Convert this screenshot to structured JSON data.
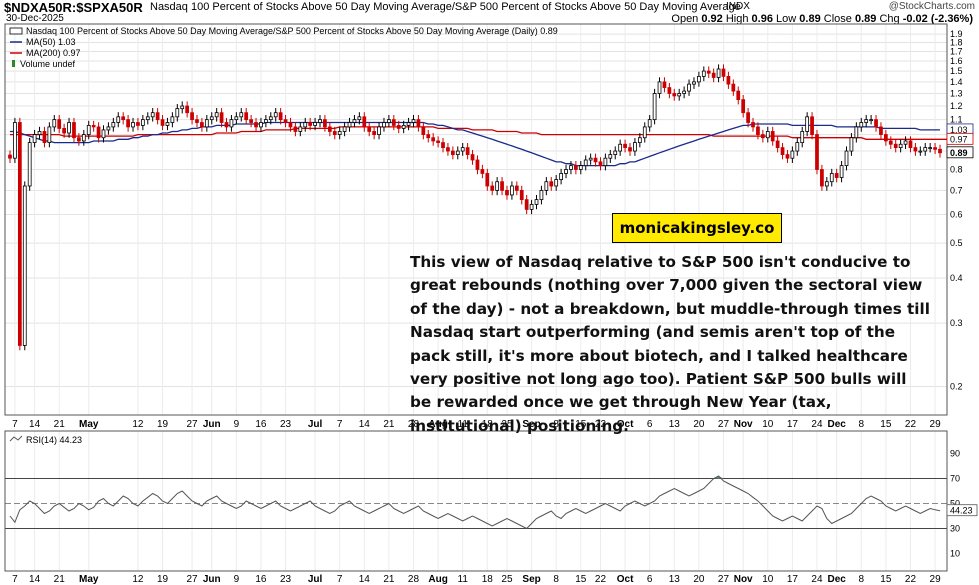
{
  "header": {
    "symbol": "$NDXA50R:$SPXA50R",
    "description": "Nasdaq 100 Percent of Stocks Above 50 Day Moving Average/S&P 500 Percent of Stocks Above 50 Day Moving Average",
    "exchange": "INDX",
    "watermark": "@StockCharts.com",
    "date": "30-Dec-2025",
    "open_label": "Open",
    "open": "0.92",
    "high_label": "High",
    "high": "0.96",
    "low_label": "Low",
    "low": "0.89",
    "close_label": "Close",
    "close": "0.89",
    "chg_label": "Chg",
    "chg": "-0.02 (-2.36%)"
  },
  "legend": {
    "main": "Nasdaq 100 Percent of Stocks Above 50 Day Moving Average/S&P 500 Percent of Stocks Above 50 Day Moving Average (Daily) 0.89",
    "ma50": "MA(50) 1.03",
    "ma200": "MA(200) 0.97",
    "volume": "Volume undef",
    "rsi": "RSI(14) 44.23"
  },
  "colors": {
    "up": "#000000",
    "down": "#cc0000",
    "ma50": "#1a2a8c",
    "ma200": "#cc0000",
    "rsi": "#555555",
    "brand_bg": "#ffea00"
  },
  "annotation": {
    "brand": "monicakingsley.co",
    "text": "This view of Nasdaq relative to S&P 500 isn't conducive to great rebounds (nothing over 7,000 given the sectoral view of the day) - not a breakdown, but muddle-through times till Nasdaq start outperforming (and semis aren't top of the pack still, it's more about biotech, and I talked healthcare very positive not long ago too). Patient S&P 500 bulls will be rewarded once we get through New Year (tax, institutional) positioning."
  },
  "chart_data": [
    {
      "type": "candlestick",
      "scale": "log",
      "ylim": [
        0.17,
        1.95
      ],
      "y_ticks": [
        "1.9",
        "1.8",
        "1.7",
        "1.6",
        "1.5",
        "1.4",
        "1.3",
        "1.2",
        "1.1",
        "1.0",
        "0.9",
        "0.8",
        "0.7",
        "0.6",
        "0.5",
        "0.4",
        "0.3",
        "0.2"
      ],
      "y_tick_values": [
        1.9,
        1.8,
        1.7,
        1.6,
        1.5,
        1.4,
        1.3,
        1.2,
        1.1,
        1.0,
        0.9,
        0.8,
        0.7,
        0.6,
        0.5,
        0.4,
        0.3,
        0.2
      ],
      "price_labels": [
        {
          "label": "1.03",
          "value": 1.03,
          "series": "ma50"
        },
        {
          "label": "0.97",
          "value": 0.97,
          "series": "ma200"
        },
        {
          "label": "0.89",
          "value": 0.89,
          "series": "close"
        }
      ],
      "x_ticks": [
        "7",
        "14",
        "21",
        "May",
        "12",
        "19",
        "27",
        "Jun",
        "9",
        "16",
        "23",
        "Jul",
        "7",
        "14",
        "21",
        "28",
        "Aug",
        "11",
        "18",
        "25",
        "Sep",
        "8",
        "15",
        "22",
        "Oct",
        "6",
        "13",
        "20",
        "27",
        "Nov",
        "10",
        "17",
        "24",
        "Dec",
        "8",
        "15",
        "22",
        "29"
      ],
      "x_tick_index": [
        1,
        5,
        10,
        16,
        26,
        31,
        37,
        41,
        46,
        51,
        56,
        62,
        67,
        72,
        77,
        82,
        87,
        92,
        97,
        101,
        106,
        111,
        116,
        120,
        125,
        130,
        135,
        140,
        145,
        149,
        154,
        159,
        164,
        168,
        173,
        178,
        183,
        188
      ],
      "month_ticks": [
        "May",
        "Jun",
        "Jul",
        "Aug",
        "Sep",
        "Oct",
        "Nov",
        "Dec"
      ],
      "close": [
        0.86,
        1.08,
        0.26,
        0.72,
        0.95,
        1.0,
        1.02,
        0.95,
        1.05,
        1.1,
        1.04,
        1.01,
        1.08,
        0.98,
        0.96,
        1.0,
        1.06,
        1.05,
        0.98,
        1.03,
        1.05,
        1.08,
        1.12,
        1.1,
        1.05,
        1.08,
        1.06,
        1.1,
        1.12,
        1.15,
        1.1,
        1.06,
        1.08,
        1.12,
        1.18,
        1.2,
        1.15,
        1.1,
        1.08,
        1.05,
        1.1,
        1.12,
        1.15,
        1.08,
        1.05,
        1.1,
        1.12,
        1.15,
        1.1,
        1.08,
        1.05,
        1.08,
        1.1,
        1.12,
        1.15,
        1.1,
        1.08,
        1.05,
        1.02,
        1.05,
        1.08,
        1.06,
        1.08,
        1.1,
        1.05,
        1.02,
        1.0,
        1.02,
        1.05,
        1.08,
        1.1,
        1.12,
        1.05,
        1.02,
        1.0,
        1.05,
        1.08,
        1.1,
        1.06,
        1.04,
        1.06,
        1.08,
        1.1,
        1.05,
        1.0,
        0.98,
        0.96,
        0.95,
        0.92,
        0.9,
        0.88,
        0.9,
        0.92,
        0.88,
        0.85,
        0.8,
        0.78,
        0.72,
        0.7,
        0.74,
        0.7,
        0.68,
        0.72,
        0.7,
        0.66,
        0.62,
        0.64,
        0.66,
        0.7,
        0.74,
        0.72,
        0.75,
        0.78,
        0.8,
        0.82,
        0.8,
        0.82,
        0.85,
        0.86,
        0.84,
        0.82,
        0.86,
        0.88,
        0.9,
        0.94,
        0.92,
        0.9,
        0.95,
        0.98,
        1.05,
        1.1,
        1.3,
        1.4,
        1.35,
        1.3,
        1.28,
        1.3,
        1.32,
        1.38,
        1.4,
        1.45,
        1.5,
        1.48,
        1.44,
        1.52,
        1.45,
        1.38,
        1.32,
        1.25,
        1.15,
        1.08,
        1.05,
        1.0,
        0.98,
        1.02,
        0.96,
        0.92,
        0.88,
        0.86,
        0.9,
        0.95,
        1.02,
        1.12,
        1.0,
        0.8,
        0.72,
        0.74,
        0.78,
        0.76,
        0.82,
        0.9,
        0.98,
        1.05,
        1.08,
        1.1,
        1.1,
        1.05,
        1.0,
        0.96,
        0.94,
        0.92,
        0.94,
        0.96,
        0.92,
        0.9,
        0.9,
        0.92,
        0.92,
        0.91,
        0.89
      ],
      "ma50": [
        1.02,
        1.02,
        1.01,
        1.0,
        0.99,
        0.98,
        0.97,
        0.96,
        0.96,
        0.95,
        0.95,
        0.95,
        0.95,
        0.95,
        0.95,
        0.95,
        0.95,
        0.96,
        0.96,
        0.96,
        0.96,
        0.96,
        0.97,
        0.97,
        0.97,
        0.98,
        0.98,
        0.99,
        0.99,
        1.0,
        1.0,
        1.01,
        1.01,
        1.02,
        1.02,
        1.03,
        1.03,
        1.04,
        1.04,
        1.05,
        1.05,
        1.05,
        1.06,
        1.06,
        1.06,
        1.06,
        1.07,
        1.07,
        1.07,
        1.07,
        1.07,
        1.07,
        1.08,
        1.08,
        1.08,
        1.08,
        1.08,
        1.08,
        1.08,
        1.08,
        1.08,
        1.08,
        1.08,
        1.08,
        1.08,
        1.08,
        1.08,
        1.08,
        1.08,
        1.08,
        1.08,
        1.08,
        1.08,
        1.08,
        1.08,
        1.08,
        1.08,
        1.08,
        1.08,
        1.08,
        1.08,
        1.08,
        1.08,
        1.08,
        1.08,
        1.07,
        1.07,
        1.06,
        1.06,
        1.05,
        1.04,
        1.03,
        1.03,
        1.02,
        1.01,
        1.0,
        0.99,
        0.98,
        0.97,
        0.96,
        0.95,
        0.94,
        0.93,
        0.92,
        0.91,
        0.9,
        0.89,
        0.88,
        0.87,
        0.86,
        0.85,
        0.84,
        0.84,
        0.83,
        0.83,
        0.82,
        0.82,
        0.82,
        0.82,
        0.82,
        0.82,
        0.82,
        0.82,
        0.82,
        0.83,
        0.83,
        0.84,
        0.84,
        0.85,
        0.86,
        0.87,
        0.88,
        0.89,
        0.9,
        0.91,
        0.92,
        0.93,
        0.94,
        0.95,
        0.96,
        0.97,
        0.98,
        0.99,
        1.0,
        1.01,
        1.02,
        1.03,
        1.04,
        1.05,
        1.06,
        1.06,
        1.07,
        1.07,
        1.07,
        1.07,
        1.07,
        1.07,
        1.07,
        1.07,
        1.06,
        1.06,
        1.06,
        1.06,
        1.06,
        1.06,
        1.06,
        1.06,
        1.06,
        1.05,
        1.05,
        1.05,
        1.05,
        1.05,
        1.05,
        1.05,
        1.05,
        1.05,
        1.04,
        1.04,
        1.04,
        1.04,
        1.04,
        1.04,
        1.04,
        1.04,
        1.03,
        1.03,
        1.03,
        1.03,
        1.03
      ],
      "ma200": [
        1.0,
        1.0,
        1.0,
        1.0,
        1.0,
        1.0,
        1.0,
        1.0,
        1.0,
        1.0,
        1.0,
        0.99,
        0.99,
        0.99,
        0.99,
        0.99,
        0.99,
        0.99,
        0.99,
        0.99,
        0.99,
        0.99,
        0.99,
        0.99,
        0.99,
        0.99,
        1.0,
        1.0,
        1.0,
        1.0,
        1.0,
        1.0,
        1.0,
        1.0,
        1.0,
        1.0,
        1.0,
        1.0,
        1.0,
        1.0,
        1.0,
        1.0,
        1.01,
        1.01,
        1.01,
        1.01,
        1.01,
        1.02,
        1.02,
        1.02,
        1.02,
        1.02,
        1.03,
        1.03,
        1.03,
        1.03,
        1.03,
        1.03,
        1.04,
        1.04,
        1.04,
        1.04,
        1.04,
        1.04,
        1.04,
        1.04,
        1.04,
        1.05,
        1.05,
        1.05,
        1.05,
        1.05,
        1.05,
        1.05,
        1.05,
        1.05,
        1.05,
        1.05,
        1.05,
        1.05,
        1.05,
        1.05,
        1.05,
        1.05,
        1.05,
        1.05,
        1.05,
        1.04,
        1.04,
        1.04,
        1.04,
        1.04,
        1.04,
        1.04,
        1.03,
        1.03,
        1.03,
        1.03,
        1.03,
        1.02,
        1.02,
        1.02,
        1.02,
        1.02,
        1.01,
        1.01,
        1.01,
        1.01,
        1.0,
        1.0,
        1.0,
        1.0,
        1.0,
        1.0,
        1.0,
        1.0,
        1.0,
        1.0,
        1.0,
        1.0,
        1.0,
        1.0,
        1.0,
        1.0,
        1.0,
        1.0,
        1.0,
        1.0,
        1.0,
        1.0,
        1.0,
        1.0,
        1.0,
        1.0,
        1.0,
        1.0,
        1.0,
        1.0,
        1.0,
        1.0,
        1.0,
        1.0,
        1.0,
        0.99,
        0.99,
        0.99,
        0.99,
        0.99,
        0.99,
        0.99,
        0.99,
        0.99,
        0.99,
        0.99,
        0.99,
        0.99,
        0.99,
        0.99,
        0.99,
        0.98,
        0.98,
        0.98,
        0.98,
        0.98,
        0.98,
        0.98,
        0.98,
        0.98,
        0.98,
        0.98,
        0.98,
        0.98,
        0.98,
        0.98,
        0.97,
        0.97,
        0.97,
        0.97,
        0.97,
        0.97,
        0.97,
        0.97,
        0.97,
        0.97,
        0.97,
        0.97,
        0.97,
        0.97,
        0.97,
        0.97,
        0.97,
        0.97,
        0.97,
        0.97
      ]
    },
    {
      "type": "line",
      "name": "RSI(14)",
      "ylim": [
        0,
        100
      ],
      "y_ticks": [
        "90",
        "70",
        "50",
        "30",
        "10"
      ],
      "y_tick_values": [
        90,
        70,
        50,
        30,
        10
      ],
      "reference_lines": [
        70,
        50,
        30
      ],
      "last_label": "44.23",
      "values": [
        40,
        35,
        45,
        48,
        52,
        50,
        46,
        42,
        44,
        48,
        50,
        47,
        44,
        46,
        50,
        48,
        45,
        47,
        52,
        54,
        50,
        48,
        52,
        56,
        54,
        50,
        48,
        52,
        55,
        58,
        56,
        52,
        50,
        54,
        58,
        60,
        56,
        52,
        50,
        48,
        52,
        54,
        56,
        52,
        50,
        48,
        46,
        48,
        52,
        50,
        48,
        46,
        48,
        50,
        52,
        48,
        46,
        44,
        46,
        48,
        50,
        52,
        48,
        46,
        44,
        42,
        44,
        48,
        50,
        52,
        48,
        46,
        44,
        42,
        44,
        46,
        48,
        50,
        46,
        44,
        42,
        44,
        46,
        48,
        44,
        42,
        40,
        38,
        40,
        42,
        40,
        38,
        36,
        38,
        40,
        38,
        36,
        34,
        32,
        34,
        36,
        38,
        36,
        34,
        32,
        30,
        34,
        38,
        40,
        42,
        44,
        40,
        38,
        42,
        44,
        46,
        44,
        42,
        44,
        46,
        48,
        50,
        48,
        46,
        44,
        48,
        50,
        52,
        50,
        48,
        50,
        52,
        56,
        58,
        60,
        62,
        60,
        58,
        56,
        58,
        60,
        62,
        66,
        70,
        72,
        68,
        66,
        64,
        62,
        60,
        58,
        55,
        52,
        48,
        44,
        40,
        38,
        36,
        38,
        40,
        38,
        36,
        40,
        44,
        48,
        46,
        38,
        34,
        36,
        38,
        40,
        42,
        46,
        50,
        54,
        56,
        54,
        52,
        48,
        46,
        44,
        46,
        48,
        46,
        44,
        42,
        44,
        46,
        45,
        44.23
      ]
    }
  ]
}
